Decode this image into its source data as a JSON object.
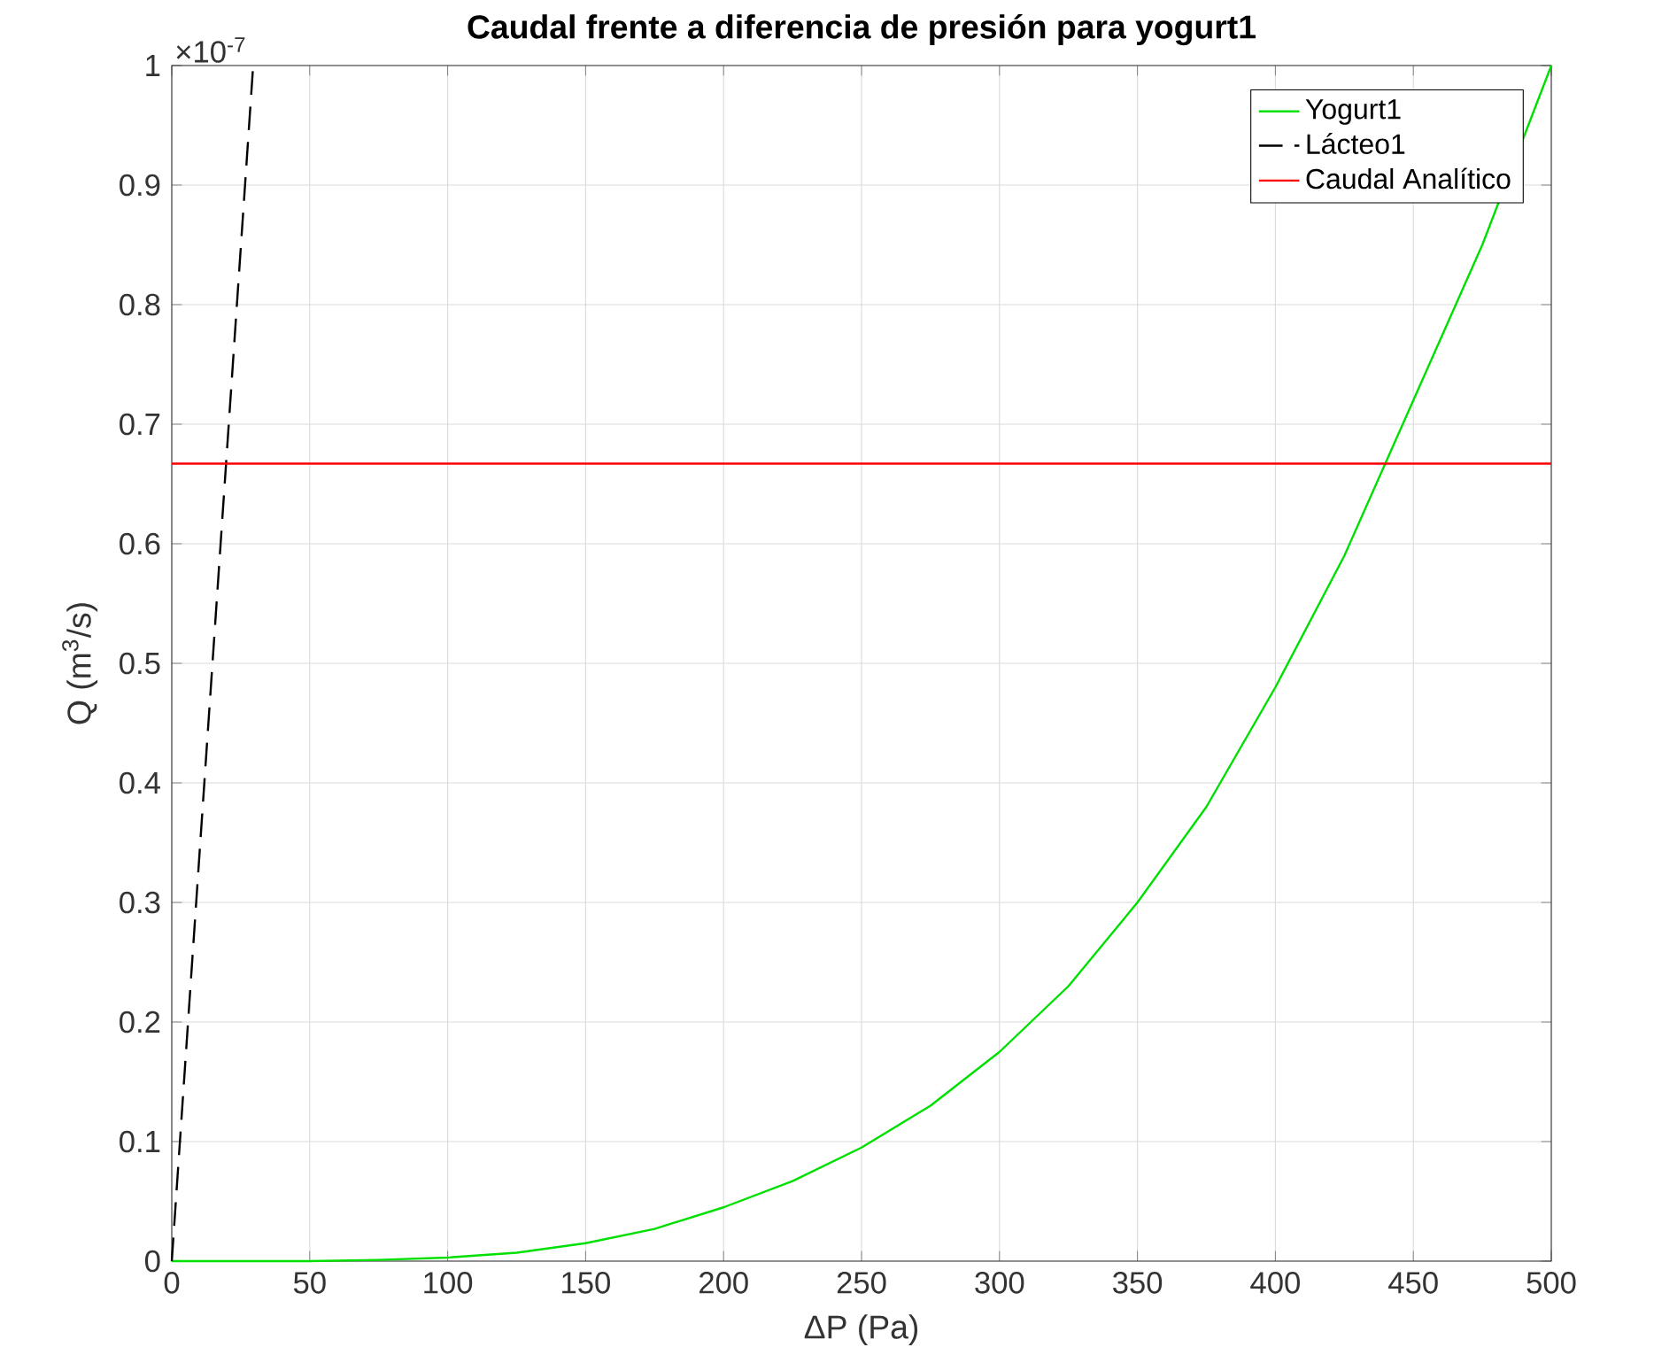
{
  "chart_data": {
    "type": "line",
    "title": "Caudal frente a diferencia de presión para yogurt1",
    "xlabel": "ΔP (Pa)",
    "ylabel": "Q (m$^{3}$/s)",
    "annotations": [
      "×10$^{-7}$"
    ],
    "series": [
      {
        "name": "Yogurt1",
        "color": "#00e000",
        "line_style": "solid",
        "x": [
          0,
          50,
          75,
          100,
          125,
          150,
          175,
          200,
          225,
          250,
          275,
          300,
          325,
          350,
          375,
          400,
          425,
          450,
          475,
          500
        ],
        "values": [
          0,
          0,
          0.001,
          0.003,
          0.007,
          0.015,
          0.027,
          0.045,
          0.067,
          0.095,
          0.13,
          0.175,
          0.23,
          0.3,
          0.38,
          0.48,
          0.59,
          0.72,
          0.85,
          1.0
        ]
      },
      {
        "name": "Lácteo1",
        "color": "#000000",
        "line_style": "dashed",
        "x": [
          0,
          29.5
        ],
        "values": [
          0,
          1.0
        ]
      },
      {
        "name": "Caudal Analítico",
        "color": "#ff0000",
        "line_style": "solid",
        "x": [
          0,
          500
        ],
        "values": [
          0.667,
          0.667
        ]
      }
    ],
    "xlim": [
      0,
      500
    ],
    "ylim": [
      0,
      1
    ],
    "xticks": [
      0,
      50,
      100,
      150,
      200,
      250,
      300,
      350,
      400,
      450,
      500
    ],
    "yticks": [
      0,
      0.1,
      0.2,
      0.3,
      0.4,
      0.5,
      0.6,
      0.7,
      0.8,
      0.9,
      1
    ],
    "grid": true,
    "legend": "top right"
  }
}
